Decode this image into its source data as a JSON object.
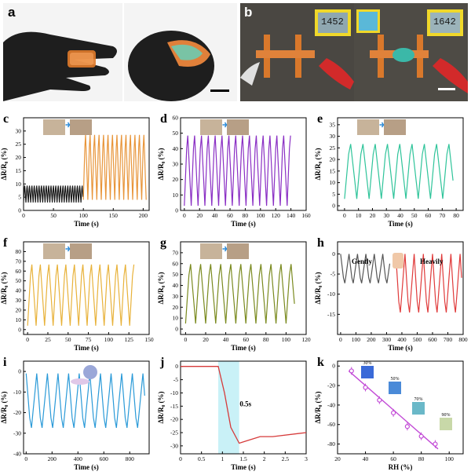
{
  "panels": {
    "a": {
      "label": "a"
    },
    "b": {
      "label": "b",
      "meter_left": "1452",
      "meter_right": "1642"
    },
    "c": {
      "label": "c",
      "xlabel": "Time (s)",
      "ylabel": "ΔR/R₀ (%)"
    },
    "d": {
      "label": "d",
      "xlabel": "Time (s)",
      "ylabel": "ΔR/R₀ (%)"
    },
    "e": {
      "label": "e",
      "xlabel": "Time (s)",
      "ylabel": "ΔR/R₀ (%)"
    },
    "f": {
      "label": "f",
      "xlabel": "Time (s)",
      "ylabel": "ΔR/R₀ (%)"
    },
    "g": {
      "label": "g",
      "xlabel": "Time (s)",
      "ylabel": "ΔR/R₀ (%)"
    },
    "h": {
      "label": "h",
      "xlabel": "Time (s)",
      "ylabel": "ΔR/R₀ (%)",
      "note_left": "Gently",
      "note_right": "Heavily"
    },
    "i": {
      "label": "i",
      "xlabel": "Time (s)",
      "ylabel": "ΔR/R₀ (%)"
    },
    "j": {
      "label": "j",
      "xlabel": "Time (s)",
      "ylabel": "ΔR/R₀ (%)",
      "note": "0.5s"
    },
    "k": {
      "label": "k",
      "xlabel": "RH (%)",
      "ylabel": "ΔR/R₀ (%)",
      "inset_labels": [
        "30%",
        "50%",
        "70%",
        "90%"
      ]
    }
  },
  "chart_data": [
    {
      "id": "c",
      "type": "line",
      "xlim": [
        0,
        210
      ],
      "ylim": [
        0,
        35
      ],
      "xticks": [
        0,
        50,
        100,
        150,
        200
      ],
      "yticks": [
        0,
        5,
        10,
        15,
        20,
        25,
        30
      ],
      "colors": [
        "#1a1a1a",
        "#e8953a"
      ],
      "segments": [
        {
          "x0": 0,
          "x1": 100,
          "period": 4,
          "peak": 10,
          "base": 3
        },
        {
          "x0": 100,
          "x1": 205,
          "period": 7.5,
          "peak": 31,
          "base": 4
        }
      ]
    },
    {
      "id": "d",
      "type": "line",
      "xlim": [
        -5,
        160
      ],
      "ylim": [
        0,
        60
      ],
      "xticks": [
        0,
        20,
        40,
        60,
        80,
        100,
        120,
        140,
        160
      ],
      "yticks": [
        0,
        10,
        20,
        30,
        40,
        50,
        60
      ],
      "colors": [
        "#8a2fc4"
      ],
      "segments": [
        {
          "x0": 0,
          "x1": 140,
          "period": 9,
          "peak": 53,
          "base": 3
        }
      ]
    },
    {
      "id": "e",
      "type": "line",
      "xlim": [
        -5,
        85
      ],
      "ylim": [
        -2,
        38
      ],
      "xticks": [
        0,
        10,
        20,
        30,
        40,
        50,
        60,
        70,
        80
      ],
      "yticks": [
        0,
        5,
        10,
        15,
        20,
        25,
        30,
        35
      ],
      "colors": [
        "#2fc49a"
      ],
      "segments": [
        {
          "x0": 0,
          "x1": 78,
          "period": 8.8,
          "peak": 29,
          "base": 3
        }
      ]
    },
    {
      "id": "f",
      "type": "line",
      "xlim": [
        -5,
        150
      ],
      "ylim": [
        -5,
        90
      ],
      "xticks": [
        0,
        25,
        50,
        75,
        100,
        125,
        150
      ],
      "yticks": [
        0,
        10,
        20,
        30,
        40,
        50,
        60,
        70,
        80
      ],
      "colors": [
        "#e8b23a"
      ],
      "segments": [
        {
          "x0": 0,
          "x1": 132,
          "period": 10.5,
          "peak": 73,
          "base": 4
        }
      ]
    },
    {
      "id": "g",
      "type": "line",
      "xlim": [
        -5,
        120
      ],
      "ylim": [
        -5,
        80
      ],
      "xticks": [
        0,
        20,
        40,
        60,
        80,
        100,
        120
      ],
      "yticks": [
        0,
        10,
        20,
        30,
        40,
        50,
        60,
        70
      ],
      "colors": [
        "#7a8a1f"
      ],
      "segments": [
        {
          "x0": 0,
          "x1": 110,
          "period": 10,
          "peak": 65,
          "base": 5
        }
      ]
    },
    {
      "id": "h",
      "type": "line",
      "xlim": [
        -20,
        800
      ],
      "ylim": [
        -20,
        3
      ],
      "xticks": [
        0,
        100,
        200,
        300,
        400,
        500,
        600,
        700,
        800
      ],
      "yticks": [
        0,
        -5,
        -10,
        -15
      ],
      "colors": [
        "#555555",
        "#e03a3a"
      ],
      "segments": [
        {
          "x0": 0,
          "x1": 330,
          "period": 55,
          "peak": -8,
          "base": 0
        },
        {
          "x0": 360,
          "x1": 790,
          "period": 60,
          "peak": -16,
          "base": 0
        }
      ]
    },
    {
      "id": "i",
      "type": "line",
      "xlim": [
        -20,
        950
      ],
      "ylim": [
        -40,
        5
      ],
      "xticks": [
        0,
        200,
        400,
        600,
        800
      ],
      "yticks": [
        0,
        -10,
        -20,
        -30,
        -40
      ],
      "colors": [
        "#2a9ad8"
      ],
      "segments": [
        {
          "x0": 0,
          "x1": 920,
          "period": 82,
          "peak": -30,
          "base": -1
        }
      ]
    },
    {
      "id": "j",
      "type": "line",
      "xlim": [
        0,
        3
      ],
      "ylim": [
        -33,
        2
      ],
      "xticks": [
        0.0,
        0.5,
        1.0,
        1.5,
        2.0,
        2.5,
        3.0
      ],
      "yticks": [
        0,
        -5,
        -10,
        -15,
        -20,
        -25,
        -30
      ],
      "colors": [
        "#d63a3a"
      ],
      "highlight": [
        0.9,
        1.4
      ],
      "points": [
        [
          0,
          0
        ],
        [
          0.9,
          0
        ],
        [
          1.05,
          -10
        ],
        [
          1.2,
          -23
        ],
        [
          1.4,
          -29
        ],
        [
          1.6,
          -28
        ],
        [
          1.9,
          -26.5
        ],
        [
          2.2,
          -26.5
        ],
        [
          3.0,
          -25
        ]
      ]
    },
    {
      "id": "k",
      "type": "scatter",
      "xlim": [
        20,
        110
      ],
      "ylim": [
        -90,
        5
      ],
      "xticks": [
        20,
        40,
        60,
        80,
        100
      ],
      "yticks": [
        0,
        -20,
        -40,
        -60,
        -80
      ],
      "colors": [
        "#c24ad6"
      ],
      "points": [
        [
          30,
          -5
        ],
        [
          40,
          -22
        ],
        [
          50,
          -35
        ],
        [
          60,
          -48
        ],
        [
          70,
          -62
        ],
        [
          80,
          -72
        ],
        [
          90,
          -80
        ]
      ],
      "fit": [
        [
          28,
          -5
        ],
        [
          92,
          -85
        ]
      ]
    }
  ]
}
